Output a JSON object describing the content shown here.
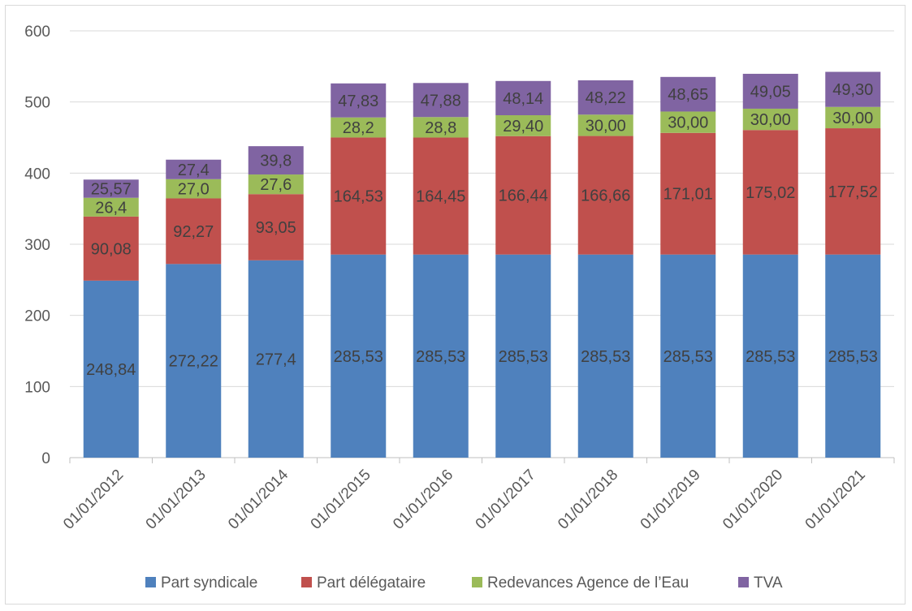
{
  "chart_data": {
    "type": "bar",
    "stacked": true,
    "categories": [
      "01/01/2012",
      "01/01/2013",
      "01/01/2014",
      "01/01/2015",
      "01/01/2016",
      "01/01/2017",
      "01/01/2018",
      "01/01/2019",
      "01/01/2020",
      "01/01/2021"
    ],
    "series": [
      {
        "name": "Part syndicale",
        "color": "#4f81bd",
        "values": [
          248.84,
          272.22,
          277.4,
          285.53,
          285.53,
          285.53,
          285.53,
          285.53,
          285.53,
          285.53
        ],
        "labels": [
          "248,84",
          "272,22",
          "277,4",
          "285,53",
          "285,53",
          "285,53",
          "285,53",
          "285,53",
          "285,53",
          "285,53"
        ]
      },
      {
        "name": "Part délégataire",
        "color": "#c0504d",
        "values": [
          90.08,
          92.27,
          93.05,
          164.53,
          164.45,
          166.44,
          166.66,
          171.01,
          175.02,
          177.52
        ],
        "labels": [
          "90,08",
          "92,27",
          "93,05",
          "164,53",
          "164,45",
          "166,44",
          "166,66",
          "171,01",
          "175,02",
          "177,52"
        ]
      },
      {
        "name": "Redevances Agence de l’Eau",
        "color": "#9bbb59",
        "values": [
          26.4,
          27.0,
          27.6,
          28.2,
          28.8,
          29.4,
          30.0,
          30.0,
          30.0,
          30.0
        ],
        "labels": [
          "26,4",
          "27,0",
          "27,6",
          "28,2",
          "28,8",
          "29,40",
          "30,00",
          "30,00",
          "30,00",
          "30,00"
        ]
      },
      {
        "name": "TVA",
        "color": "#8064a2",
        "values": [
          25.57,
          27.4,
          39.8,
          47.83,
          47.88,
          48.14,
          48.22,
          48.65,
          49.05,
          49.3
        ],
        "labels": [
          "25,57",
          "27,4",
          "39,8",
          "47,83",
          "47,88",
          "48,14",
          "48,22",
          "48,65",
          "49,05",
          "49,30"
        ]
      }
    ],
    "y_ticks": [
      "0",
      "100",
      "200",
      "300",
      "400",
      "500",
      "600"
    ],
    "ylim": [
      0,
      600
    ],
    "grid": true,
    "legend_position": "bottom"
  }
}
